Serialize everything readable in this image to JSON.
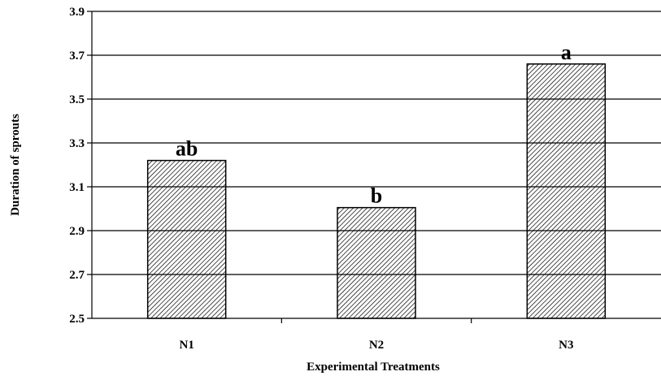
{
  "chart_data": {
    "type": "bar",
    "categories": [
      "N1",
      "N2",
      "N3"
    ],
    "values": [
      3.22,
      3.005,
      3.66
    ],
    "bar_labels": [
      "ab",
      "b",
      "a"
    ],
    "xlabel": "Experimental Treatments",
    "ylabel": "Duration of sprouts",
    "ylim": [
      2.5,
      3.9
    ],
    "yticks": [
      2.5,
      2.7,
      2.9,
      3.1,
      3.3,
      3.5,
      3.7,
      3.9
    ],
    "ytick_labels": [
      "2.5",
      "2.7",
      "2.9",
      "3.1",
      "3.3",
      "3.5",
      "3.7",
      "3.9"
    ],
    "grid": true,
    "bar_fill": "hatched diagonal",
    "colors": {
      "bar_stroke": "#000000",
      "hatch": "#000000",
      "background": "#ffffff"
    }
  }
}
